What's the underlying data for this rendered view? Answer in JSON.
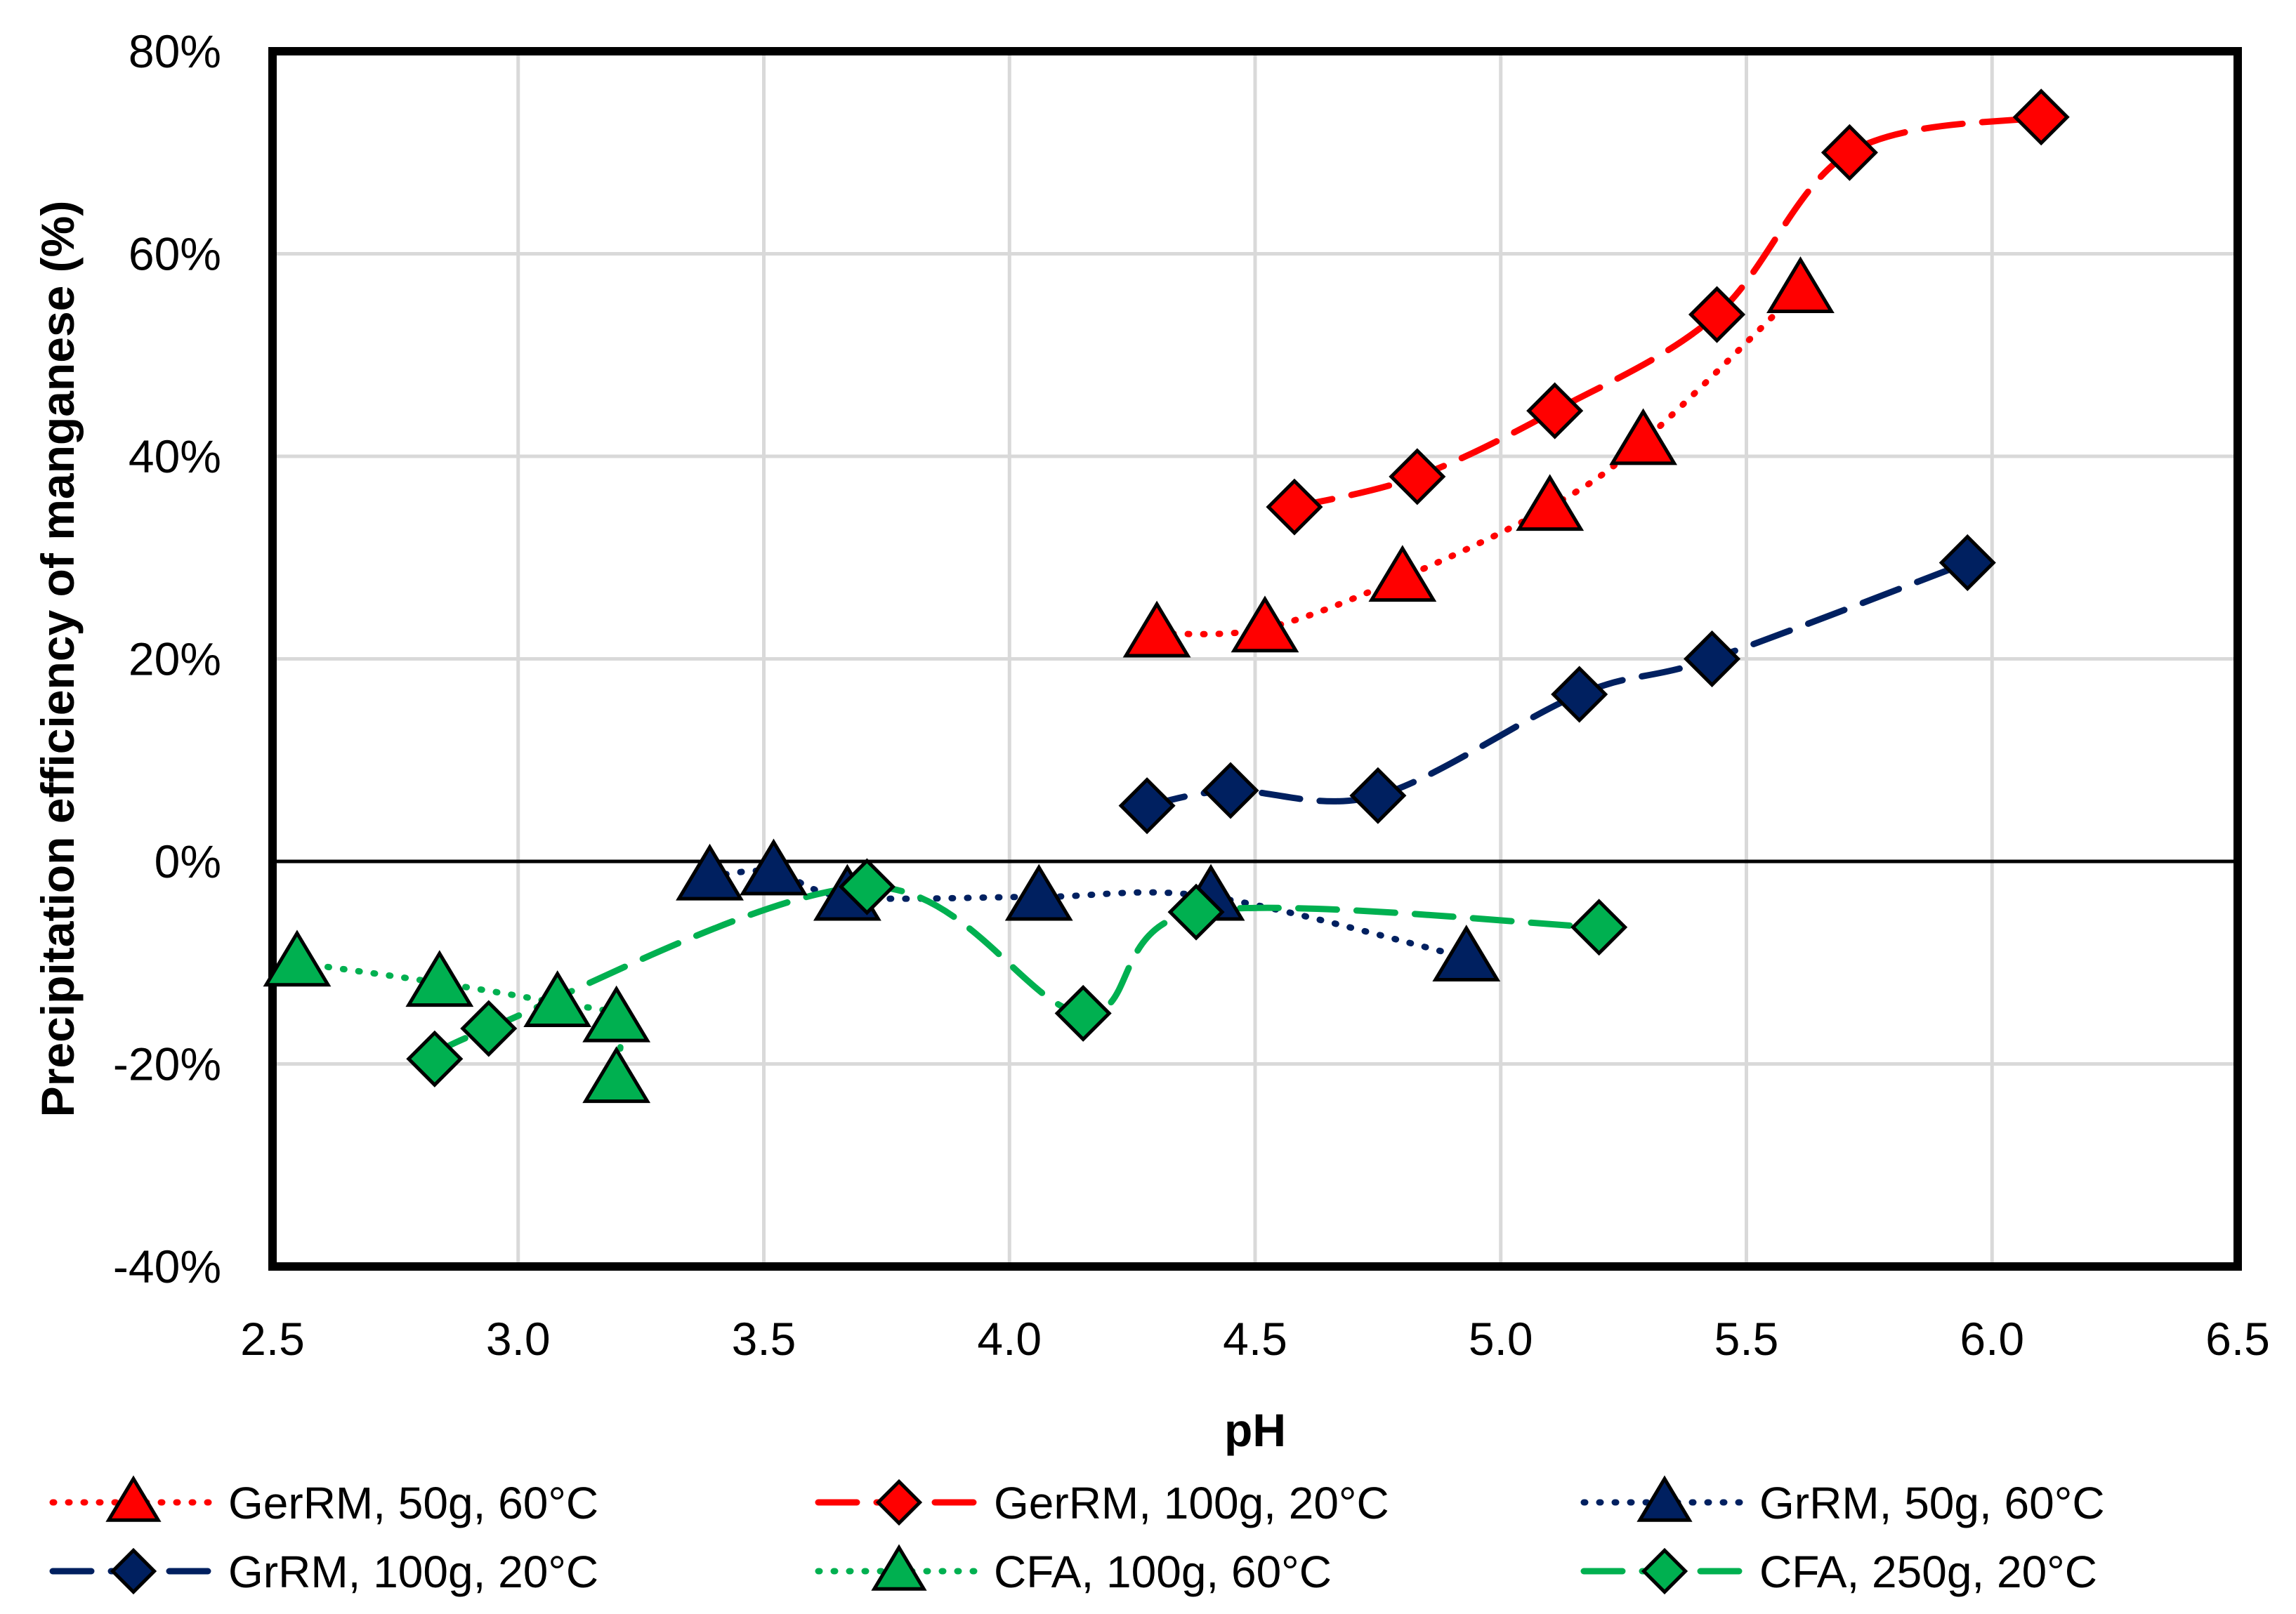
{
  "chart_data": {
    "type": "scatter",
    "title": "",
    "xlabel": "pH",
    "ylabel": "Precipitation efficiency of manganese  (%)",
    "xlim": [
      2.5,
      6.5
    ],
    "ylim": [
      -40,
      80
    ],
    "x_ticks": [
      2.5,
      3.0,
      3.5,
      4.0,
      4.5,
      5.0,
      5.5,
      6.0,
      6.5
    ],
    "x_tick_labels": [
      "2.5",
      "3.0",
      "3.5",
      "4.0",
      "4.5",
      "5.0",
      "5.5",
      "6.0",
      "6.5"
    ],
    "y_ticks": [
      -40,
      -20,
      0,
      20,
      40,
      60,
      80
    ],
    "y_tick_labels": [
      "-40%",
      "-20%",
      "0%",
      "20%",
      "40%",
      "60%",
      "80%"
    ],
    "grid": true,
    "legend_position": "bottom",
    "series": [
      {
        "name": "GerRM, 50g, 60°C",
        "marker": "triangle",
        "color": "#ff0000",
        "line": "dotted",
        "x": [
          4.3,
          4.52,
          4.8,
          5.1,
          5.29,
          5.61
        ],
        "y": [
          22.5,
          23.0,
          28.0,
          35.0,
          41.5,
          56.5
        ]
      },
      {
        "name": "GerRM, 100g, 20°C",
        "marker": "diamond",
        "color": "#ff0000",
        "line": "dashed",
        "x": [
          4.58,
          4.83,
          5.11,
          5.44,
          5.71,
          6.1
        ],
        "y": [
          35.0,
          38.0,
          44.5,
          54.0,
          70.0,
          73.5
        ]
      },
      {
        "name": "GrRM, 50g, 60°C",
        "marker": "triangle",
        "color": "#002060",
        "line": "dotted",
        "x": [
          3.39,
          3.52,
          3.67,
          4.06,
          4.41,
          4.93
        ],
        "y": [
          -1.5,
          -1.0,
          -3.5,
          -3.5,
          -3.5,
          -9.5
        ]
      },
      {
        "name": "GrRM, 100g, 20°C",
        "marker": "diamond",
        "color": "#002060",
        "line": "dashed",
        "x": [
          4.28,
          4.45,
          4.75,
          5.16,
          5.43,
          5.95
        ],
        "y": [
          5.5,
          7.0,
          6.5,
          16.5,
          20.0,
          29.5
        ]
      },
      {
        "name": "CFA, 100g, 60°C",
        "marker": "triangle",
        "color": "#00b050",
        "line": "dotted",
        "x": [
          2.55,
          2.84,
          3.08,
          3.2,
          3.2
        ],
        "y": [
          -10.0,
          -12.0,
          -14.0,
          -15.5,
          -21.5
        ]
      },
      {
        "name": "CFA, 250g, 20°C",
        "marker": "diamond",
        "color": "#00b050",
        "line": "dashed",
        "x": [
          2.83,
          2.94,
          3.71,
          4.15,
          4.38,
          5.2
        ],
        "y": [
          -19.5,
          -16.5,
          -2.5,
          -15.0,
          -5.0,
          -6.5
        ]
      }
    ]
  }
}
